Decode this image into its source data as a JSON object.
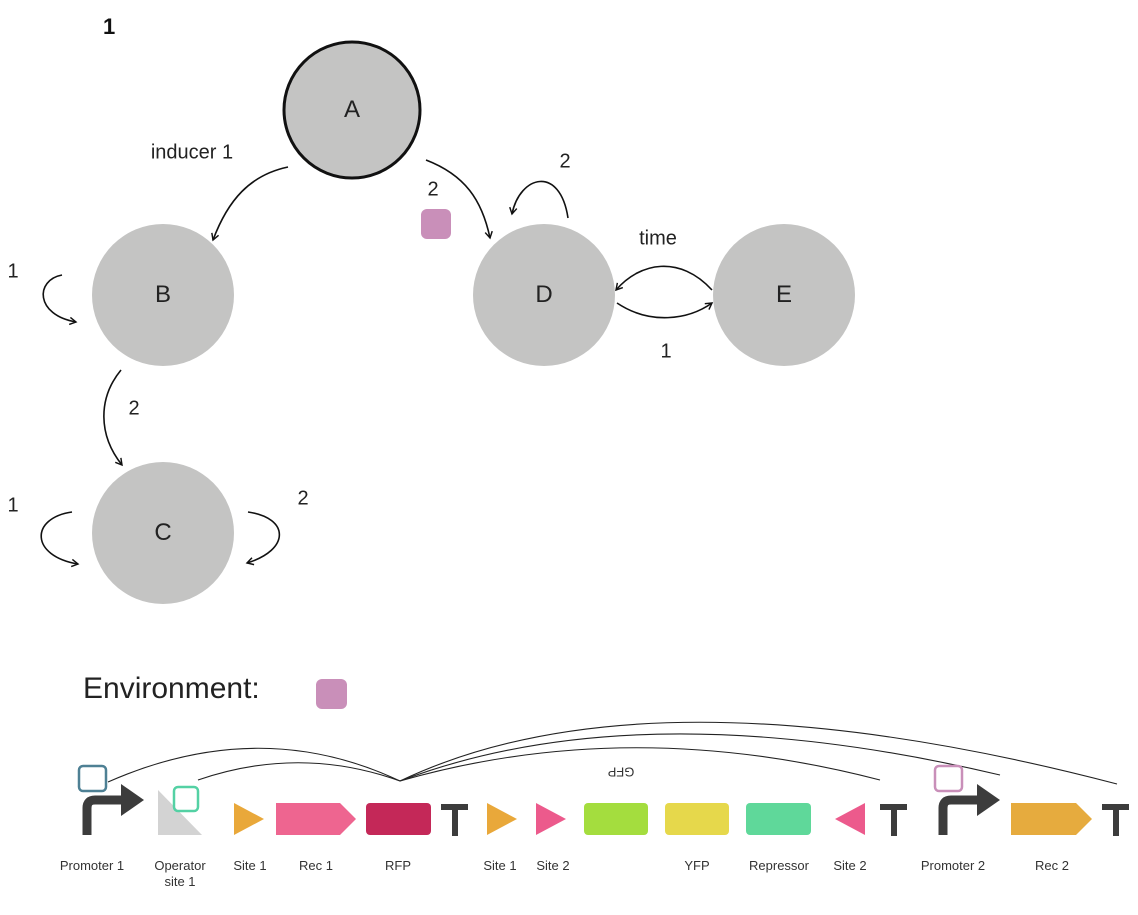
{
  "figure_number": "1",
  "nodes": [
    {
      "id": "A",
      "label": "A"
    },
    {
      "id": "B",
      "label": "B"
    },
    {
      "id": "C",
      "label": "C"
    },
    {
      "id": "D",
      "label": "D"
    },
    {
      "id": "E",
      "label": "E"
    }
  ],
  "edges": [
    {
      "from": "A",
      "to": "B",
      "label": "inducer 1"
    },
    {
      "from": "A",
      "to": "D",
      "label": "2"
    },
    {
      "from": "B",
      "to": "B",
      "label": "1"
    },
    {
      "from": "B",
      "to": "C",
      "label": "2"
    },
    {
      "from": "C",
      "to": "C",
      "label": "1"
    },
    {
      "from": "C",
      "to": "C",
      "label": "2"
    },
    {
      "from": "D",
      "to": "D",
      "label": "2"
    },
    {
      "from": "E",
      "to": "D",
      "label": "time"
    },
    {
      "from": "D",
      "to": "E",
      "label": "1"
    }
  ],
  "environment": {
    "label": "Environment:",
    "color": "#c98fb9"
  },
  "colors": {
    "node_fill": "#c4c4c3",
    "promoter1_box": "#4e8094",
    "operator_box": "#54d1a4",
    "promoter2_box": "#c98fb9",
    "site_orange": "#e9a83a",
    "site_pink": "#ec5a8c",
    "rec1": "#ee6590",
    "rfp": "#c42858",
    "gfp": "#a4dd3e",
    "yfp": "#e6d84b",
    "repressor": "#5fd89a",
    "rec2": "#e6ab3e"
  },
  "parts": {
    "promoter1": "Promoter 1",
    "operator_line1": "Operator",
    "operator_line2": "site 1",
    "site1a": "Site 1",
    "rec1": "Rec 1",
    "rfp": "RFP",
    "site1b": "Site 1",
    "site2a": "Site 2",
    "gfp": "GFP",
    "yfp": "YFP",
    "repressor": "Repressor",
    "site2b": "Site 2",
    "promoter2": "Promoter 2",
    "rec2": "Rec 2"
  }
}
